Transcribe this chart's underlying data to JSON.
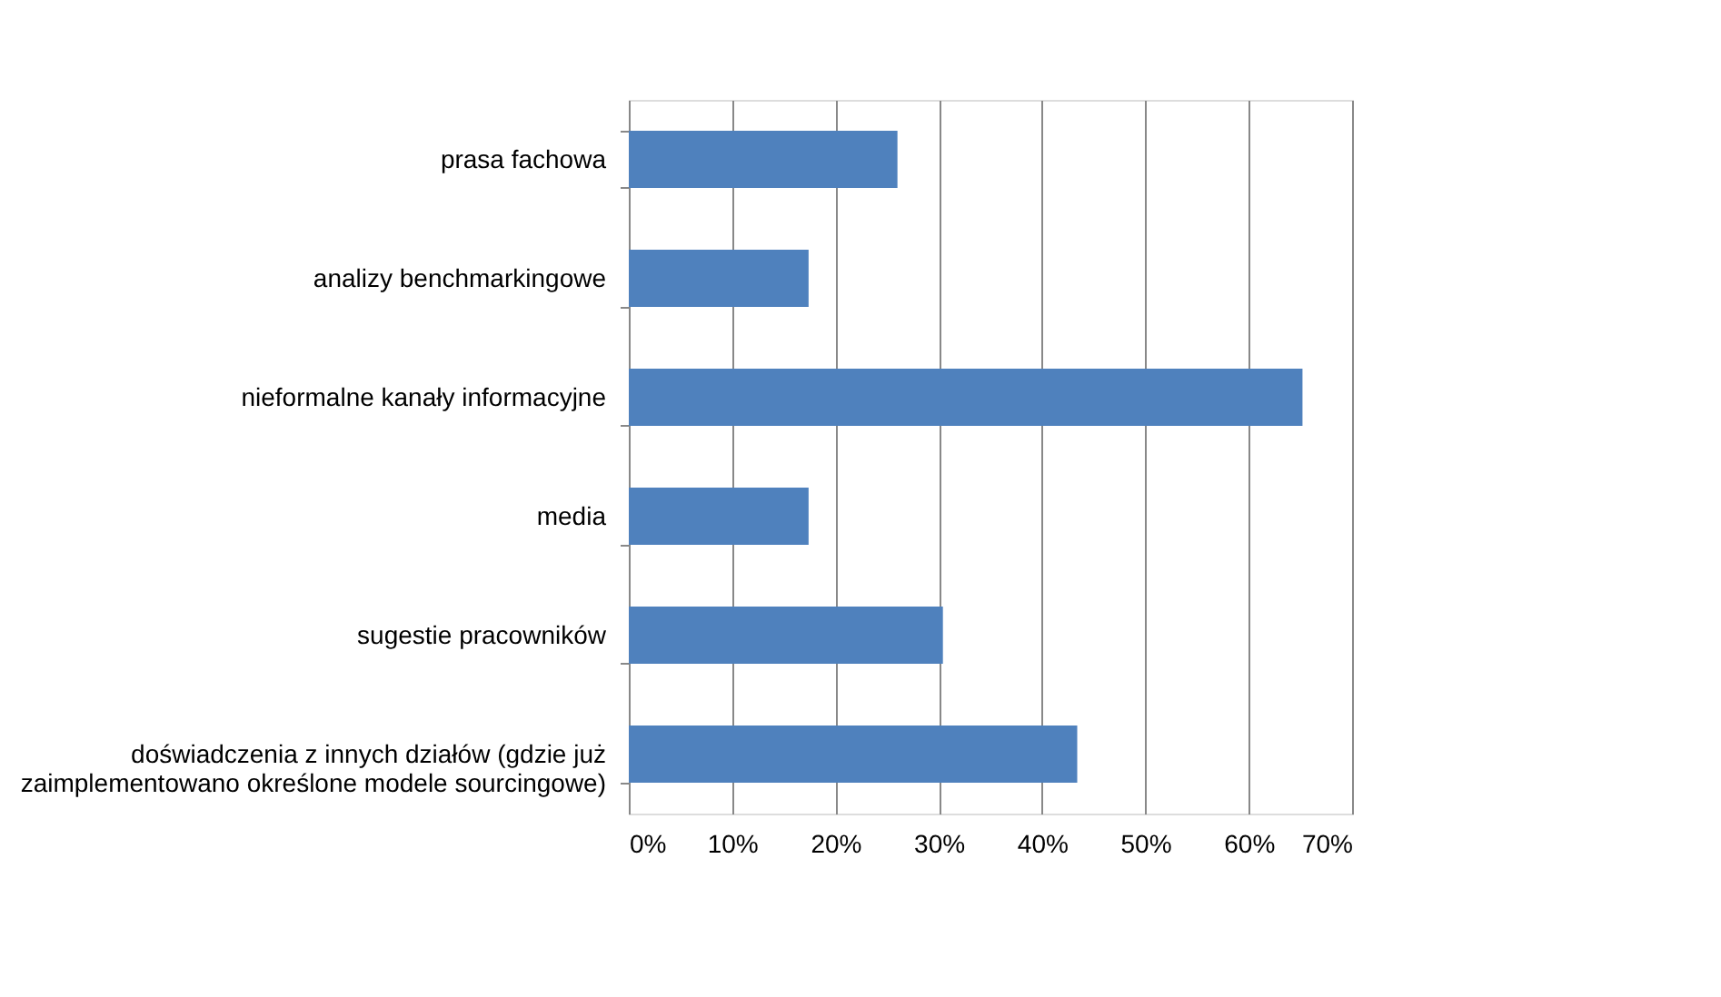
{
  "chart_data": {
    "type": "bar",
    "orientation": "horizontal",
    "categories": [
      "prasa fachowa",
      "analizy benchmarkingowe",
      "nieformalne kanały informacyjne",
      "media",
      "sugestie pracowników",
      "doświadczenia z innych działów (gdzie już zaimplementowano określone modele sourcingowe)"
    ],
    "values": [
      26,
      17.4,
      65.2,
      17.4,
      30.4,
      43.4
    ],
    "color": "#4f81bd",
    "xlim": [
      0,
      70
    ],
    "xticks": [
      {
        "value": 0,
        "label": "0%"
      },
      {
        "value": 10,
        "label": "10%"
      },
      {
        "value": 20,
        "label": "20%"
      },
      {
        "value": 30,
        "label": "30%"
      },
      {
        "value": 40,
        "label": "40%"
      },
      {
        "value": 50,
        "label": "50%"
      },
      {
        "value": 60,
        "label": "60%"
      },
      {
        "value": 70,
        "label": "70%"
      }
    ],
    "grid": "x"
  }
}
